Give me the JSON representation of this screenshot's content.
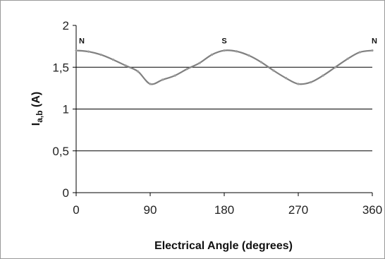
{
  "chart_data": {
    "type": "line",
    "title": "",
    "xlabel": "Electrical Angle (degrees)",
    "ylabel_main": "I",
    "ylabel_sub": "a,b",
    "ylabel_unit": " (A)",
    "xlim": [
      0,
      360
    ],
    "ylim": [
      0,
      2
    ],
    "x_ticks": [
      0,
      90,
      180,
      270,
      360
    ],
    "y_ticks": [
      0,
      0.5,
      1,
      1.5,
      2
    ],
    "x_tick_labels": [
      "0",
      "90",
      "180",
      "270",
      "360"
    ],
    "y_tick_labels": [
      "0",
      "0,5",
      "1",
      "1,5",
      "2"
    ],
    "grid": "horizontal",
    "line_color": "#808080",
    "marker_color": "#9a9a9a",
    "series": [
      {
        "x": [
          0,
          15,
          30,
          45,
          60,
          75,
          90,
          105,
          120,
          135,
          150,
          165,
          180,
          195,
          210,
          225,
          240,
          255,
          270,
          285,
          300,
          315,
          330,
          345,
          360
        ],
        "values": [
          1.7,
          1.687,
          1.65,
          1.59,
          1.52,
          1.45,
          1.3,
          1.35,
          1.4,
          1.48,
          1.55,
          1.65,
          1.7,
          1.69,
          1.64,
          1.56,
          1.46,
          1.37,
          1.3,
          1.32,
          1.4,
          1.5,
          1.6,
          1.68,
          1.7
        ]
      }
    ],
    "annotations": [
      {
        "text": "N",
        "x": 0,
        "y": 1.7
      },
      {
        "text": "S",
        "x": 180,
        "y": 1.7
      },
      {
        "text": "N",
        "x": 360,
        "y": 1.7
      }
    ]
  }
}
